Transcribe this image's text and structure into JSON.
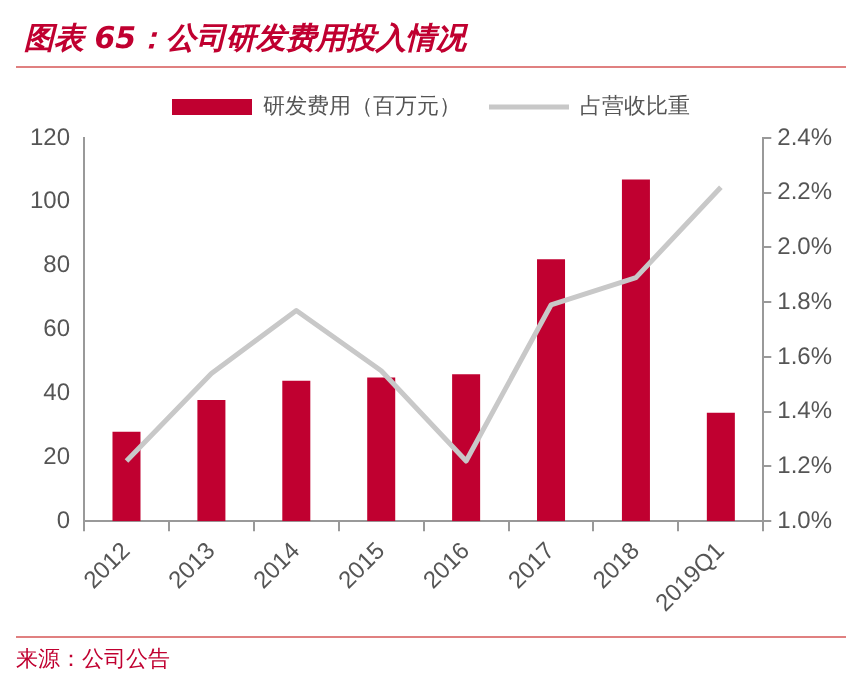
{
  "chart_data": {
    "type": "bar",
    "title": "图表 65：公司研发费用投入情况",
    "categories": [
      "2012",
      "2013",
      "2014",
      "2015",
      "2016",
      "2017",
      "2018",
      "2019Q1"
    ],
    "series": [
      {
        "name": "研发费用（百万元）",
        "color": "#c00030",
        "values": [
          28,
          38,
          44,
          45,
          46,
          82,
          107,
          34
        ]
      },
      {
        "name": "占营收比重",
        "type": "line",
        "axis": "y2",
        "color": "#c8c8c8",
        "values": [
          1.22,
          1.54,
          1.77,
          1.55,
          1.22,
          1.79,
          1.89,
          2.22
        ]
      }
    ],
    "ylim": [
      0,
      120
    ],
    "yticks": [
      0,
      20,
      40,
      60,
      80,
      100,
      120
    ],
    "y2lim": [
      1.0,
      2.4
    ],
    "y2ticks": [
      {
        "value": 1.0,
        "label": "1.0%"
      },
      {
        "value": 1.2,
        "label": "1.2%"
      },
      {
        "value": 1.4,
        "label": "1.4%"
      },
      {
        "value": 1.6,
        "label": "1.6%"
      },
      {
        "value": 1.8,
        "label": "1.8%"
      },
      {
        "value": 2.0,
        "label": "2.0%"
      },
      {
        "value": 2.2,
        "label": "2.2%"
      },
      {
        "value": 2.4,
        "label": "2.4%"
      }
    ],
    "legend": "top",
    "grid": false,
    "marker": "none",
    "annotations": [
      "来源：公司公告"
    ]
  }
}
